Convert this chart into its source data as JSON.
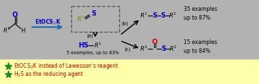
{
  "bg_color": "#b2b2b2",
  "yellow_bg": "#ffffaa",
  "blue_color": "#0000CC",
  "olive_color": "#808000",
  "red_color": "#CC0000",
  "green_star_color": "#228B22",
  "dark_color": "#222222",
  "arrow_blue": "#1a6bb5",
  "examples_right_top": "35 examples\nup to 87%",
  "examples_right_bot": "15 examples\nup to 84%",
  "examples_bottom": "5 examples, up to 83%",
  "bullet1": "EtOCS$_2$K instead of Lawesson’s reagent",
  "bullet2": "H$_2$S as the reducing agent"
}
